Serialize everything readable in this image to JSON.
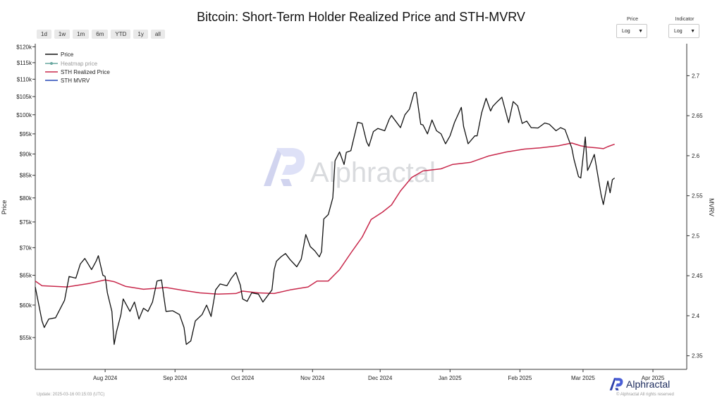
{
  "title": "Bitcoin: Short-Term Holder Realized Price and STH-MVRV",
  "range_buttons": [
    "1d",
    "1w",
    "1m",
    "6m",
    "YTD",
    "1y",
    "all"
  ],
  "controls": {
    "price": {
      "label": "Price",
      "value": "Log"
    },
    "indicator": {
      "label": "Indicator",
      "value": "Log"
    }
  },
  "watermark": "Alphractal",
  "footer": {
    "update": "Update: 2025-03-16 00:15:03 (UTC)",
    "rights": "© Alphractal All rights reserved",
    "brand": "Alphractal"
  },
  "chart_data": {
    "type": "line",
    "xlabel": "",
    "ylabel": "Price",
    "y2label": "MVRV",
    "y_scale": "log",
    "ylim": [
      50500,
      121000
    ],
    "y2lim": [
      2.333,
      2.74
    ],
    "xlim": [
      "2024-07-01",
      "2025-04-16"
    ],
    "x_ticks": [
      {
        "label": "Aug 2024",
        "date": "2024-08-01"
      },
      {
        "label": "Sep 2024",
        "date": "2024-09-01"
      },
      {
        "label": "Oct 2024",
        "date": "2024-10-01"
      },
      {
        "label": "Nov 2024",
        "date": "2024-11-01"
      },
      {
        "label": "Dec 2024",
        "date": "2024-12-01"
      },
      {
        "label": "Jan 2025",
        "date": "2025-01-01"
      },
      {
        "label": "Feb 2025",
        "date": "2025-02-01"
      },
      {
        "label": "Mar 2025",
        "date": "2025-03-01"
      },
      {
        "label": "Apr 2025",
        "date": "2025-04-01"
      }
    ],
    "y_ticks": [
      {
        "label": "$55k",
        "value": 55000
      },
      {
        "label": "$60k",
        "value": 60000
      },
      {
        "label": "$65k",
        "value": 65000
      },
      {
        "label": "$70k",
        "value": 70000
      },
      {
        "label": "$75k",
        "value": 75000
      },
      {
        "label": "$80k",
        "value": 80000
      },
      {
        "label": "$85k",
        "value": 85000
      },
      {
        "label": "$90k",
        "value": 90000
      },
      {
        "label": "$95k",
        "value": 95000
      },
      {
        "label": "$100k",
        "value": 100000
      },
      {
        "label": "$105k",
        "value": 105000
      },
      {
        "label": "$110k",
        "value": 110000
      },
      {
        "label": "$115k",
        "value": 115000
      },
      {
        "label": "$120k",
        "value": 120000
      }
    ],
    "y2_ticks": [
      {
        "label": "2.35",
        "value": 2.35
      },
      {
        "label": "2.4",
        "value": 2.4
      },
      {
        "label": "2.45",
        "value": 2.45
      },
      {
        "label": "2.5",
        "value": 2.5
      },
      {
        "label": "2.55",
        "value": 2.55
      },
      {
        "label": "2.6",
        "value": 2.6
      },
      {
        "label": "2.65",
        "value": 2.65
      },
      {
        "label": "2.7",
        "value": 2.7
      }
    ],
    "legend_position": "top-left",
    "series": [
      {
        "name": "Price",
        "color": "#111111",
        "axis": "left",
        "points": [
          [
            "2024-07-01",
            63000
          ],
          [
            "2024-07-04",
            57500
          ],
          [
            "2024-07-05",
            56500
          ],
          [
            "2024-07-07",
            57800
          ],
          [
            "2024-07-10",
            58000
          ],
          [
            "2024-07-14",
            60800
          ],
          [
            "2024-07-16",
            64800
          ],
          [
            "2024-07-19",
            64500
          ],
          [
            "2024-07-21",
            67000
          ],
          [
            "2024-07-23",
            68000
          ],
          [
            "2024-07-26",
            66000
          ],
          [
            "2024-07-28",
            67500
          ],
          [
            "2024-07-29",
            68500
          ],
          [
            "2024-07-31",
            65000
          ],
          [
            "2024-08-01",
            64800
          ],
          [
            "2024-08-02",
            62000
          ],
          [
            "2024-08-04",
            59000
          ],
          [
            "2024-08-05",
            54000
          ],
          [
            "2024-08-06",
            55800
          ],
          [
            "2024-08-08",
            58500
          ],
          [
            "2024-08-09",
            61000
          ],
          [
            "2024-08-12",
            59000
          ],
          [
            "2024-08-14",
            60500
          ],
          [
            "2024-08-16",
            57800
          ],
          [
            "2024-08-18",
            59500
          ],
          [
            "2024-08-20",
            59000
          ],
          [
            "2024-08-22",
            60500
          ],
          [
            "2024-08-24",
            64000
          ],
          [
            "2024-08-26",
            64200
          ],
          [
            "2024-08-28",
            59000
          ],
          [
            "2024-08-31",
            59100
          ],
          [
            "2024-09-03",
            58500
          ],
          [
            "2024-09-05",
            56500
          ],
          [
            "2024-09-06",
            54000
          ],
          [
            "2024-09-08",
            54500
          ],
          [
            "2024-09-10",
            57500
          ],
          [
            "2024-09-13",
            58500
          ],
          [
            "2024-09-15",
            60000
          ],
          [
            "2024-09-17",
            58200
          ],
          [
            "2024-09-19",
            62500
          ],
          [
            "2024-09-21",
            63500
          ],
          [
            "2024-09-24",
            63200
          ],
          [
            "2024-09-26",
            64500
          ],
          [
            "2024-09-28",
            65500
          ],
          [
            "2024-09-30",
            63300
          ],
          [
            "2024-10-01",
            61000
          ],
          [
            "2024-10-03",
            60600
          ],
          [
            "2024-10-05",
            62000
          ],
          [
            "2024-10-08",
            61800
          ],
          [
            "2024-10-10",
            60500
          ],
          [
            "2024-10-14",
            62500
          ],
          [
            "2024-10-15",
            66000
          ],
          [
            "2024-10-16",
            67500
          ],
          [
            "2024-10-18",
            68300
          ],
          [
            "2024-10-20",
            68900
          ],
          [
            "2024-10-22",
            67800
          ],
          [
            "2024-10-25",
            66500
          ],
          [
            "2024-10-27",
            67900
          ],
          [
            "2024-10-29",
            72500
          ],
          [
            "2024-10-31",
            70200
          ],
          [
            "2024-11-02",
            69400
          ],
          [
            "2024-11-04",
            68300
          ],
          [
            "2024-11-05",
            69200
          ],
          [
            "2024-11-06",
            75600
          ],
          [
            "2024-11-08",
            76500
          ],
          [
            "2024-11-10",
            80000
          ],
          [
            "2024-11-11",
            88400
          ],
          [
            "2024-11-13",
            90500
          ],
          [
            "2024-11-15",
            87500
          ],
          [
            "2024-11-16",
            90400
          ],
          [
            "2024-11-18",
            90800
          ],
          [
            "2024-11-21",
            98000
          ],
          [
            "2024-11-23",
            97700
          ],
          [
            "2024-11-25",
            93000
          ],
          [
            "2024-11-26",
            91900
          ],
          [
            "2024-11-28",
            95600
          ],
          [
            "2024-11-30",
            96400
          ],
          [
            "2024-12-03",
            95800
          ],
          [
            "2024-12-05",
            98800
          ],
          [
            "2024-12-06",
            99800
          ],
          [
            "2024-12-09",
            97400
          ],
          [
            "2024-12-10",
            96600
          ],
          [
            "2024-12-12",
            100000
          ],
          [
            "2024-12-14",
            101500
          ],
          [
            "2024-12-16",
            106000
          ],
          [
            "2024-12-17",
            106200
          ],
          [
            "2024-12-19",
            97500
          ],
          [
            "2024-12-20",
            97300
          ],
          [
            "2024-12-22",
            95000
          ],
          [
            "2024-12-24",
            98600
          ],
          [
            "2024-12-26",
            95800
          ],
          [
            "2024-12-28",
            95000
          ],
          [
            "2024-12-30",
            92500
          ],
          [
            "2025-01-01",
            94500
          ],
          [
            "2025-01-03",
            98000
          ],
          [
            "2025-01-06",
            102000
          ],
          [
            "2025-01-07",
            96900
          ],
          [
            "2025-01-09",
            92500
          ],
          [
            "2025-01-12",
            94500
          ],
          [
            "2025-01-13",
            94500
          ],
          [
            "2025-01-15",
            100500
          ],
          [
            "2025-01-17",
            104500
          ],
          [
            "2025-01-19",
            101000
          ],
          [
            "2025-01-20",
            102300
          ],
          [
            "2025-01-22",
            103600
          ],
          [
            "2025-01-24",
            104800
          ],
          [
            "2025-01-27",
            97900
          ],
          [
            "2025-01-29",
            103600
          ],
          [
            "2025-01-31",
            102400
          ],
          [
            "2025-02-02",
            97700
          ],
          [
            "2025-02-04",
            98300
          ],
          [
            "2025-02-06",
            96600
          ],
          [
            "2025-02-09",
            96500
          ],
          [
            "2025-02-12",
            97800
          ],
          [
            "2025-02-14",
            97500
          ],
          [
            "2025-02-17",
            95800
          ],
          [
            "2025-02-19",
            96600
          ],
          [
            "2025-02-21",
            96100
          ],
          [
            "2025-02-24",
            91500
          ],
          [
            "2025-02-25",
            88700
          ],
          [
            "2025-02-27",
            84700
          ],
          [
            "2025-02-28",
            84400
          ],
          [
            "2025-03-02",
            94200
          ],
          [
            "2025-03-03",
            86100
          ],
          [
            "2025-03-04",
            87200
          ],
          [
            "2025-03-06",
            89900
          ],
          [
            "2025-03-07",
            86700
          ],
          [
            "2025-03-09",
            80700
          ],
          [
            "2025-03-10",
            78600
          ],
          [
            "2025-03-12",
            83700
          ],
          [
            "2025-03-13",
            81100
          ],
          [
            "2025-03-14",
            84000
          ],
          [
            "2025-03-15",
            84400
          ]
        ]
      },
      {
        "name": "Heatmap price",
        "color": "#6aa8a0",
        "axis": "left",
        "hidden": true,
        "points": []
      },
      {
        "name": "STH Realized Price",
        "color": "#c8284b",
        "axis": "left",
        "points": [
          [
            "2024-07-01",
            64000
          ],
          [
            "2024-07-04",
            63200
          ],
          [
            "2024-07-15",
            63000
          ],
          [
            "2024-07-25",
            63600
          ],
          [
            "2024-08-01",
            64200
          ],
          [
            "2024-08-05",
            63900
          ],
          [
            "2024-08-10",
            63100
          ],
          [
            "2024-08-18",
            62600
          ],
          [
            "2024-08-28",
            62900
          ],
          [
            "2024-09-05",
            62400
          ],
          [
            "2024-09-12",
            62000
          ],
          [
            "2024-09-20",
            61800
          ],
          [
            "2024-09-28",
            61900
          ],
          [
            "2024-10-01",
            62300
          ],
          [
            "2024-10-08",
            62000
          ],
          [
            "2024-10-15",
            61900
          ],
          [
            "2024-10-22",
            62500
          ],
          [
            "2024-10-30",
            63000
          ],
          [
            "2024-11-03",
            64000
          ],
          [
            "2024-11-08",
            64000
          ],
          [
            "2024-11-13",
            66000
          ],
          [
            "2024-11-18",
            69000
          ],
          [
            "2024-11-23",
            72000
          ],
          [
            "2024-11-27",
            75500
          ],
          [
            "2024-12-02",
            77000
          ],
          [
            "2024-12-06",
            78500
          ],
          [
            "2024-12-10",
            81500
          ],
          [
            "2024-12-15",
            84500
          ],
          [
            "2024-12-20",
            86000
          ],
          [
            "2024-12-28",
            86500
          ],
          [
            "2025-01-02",
            87500
          ],
          [
            "2025-01-10",
            88000
          ],
          [
            "2025-01-18",
            89500
          ],
          [
            "2025-01-26",
            90500
          ],
          [
            "2025-02-03",
            91200
          ],
          [
            "2025-02-10",
            91500
          ],
          [
            "2025-02-18",
            92000
          ],
          [
            "2025-02-24",
            92700
          ],
          [
            "2025-02-28",
            92000
          ],
          [
            "2025-03-03",
            91700
          ],
          [
            "2025-03-07",
            91500
          ],
          [
            "2025-03-10",
            91300
          ],
          [
            "2025-03-12",
            91800
          ],
          [
            "2025-03-15",
            92400
          ]
        ]
      },
      {
        "name": "STH MVRV",
        "color": "#2447b5",
        "axis": "right",
        "points": []
      }
    ]
  }
}
